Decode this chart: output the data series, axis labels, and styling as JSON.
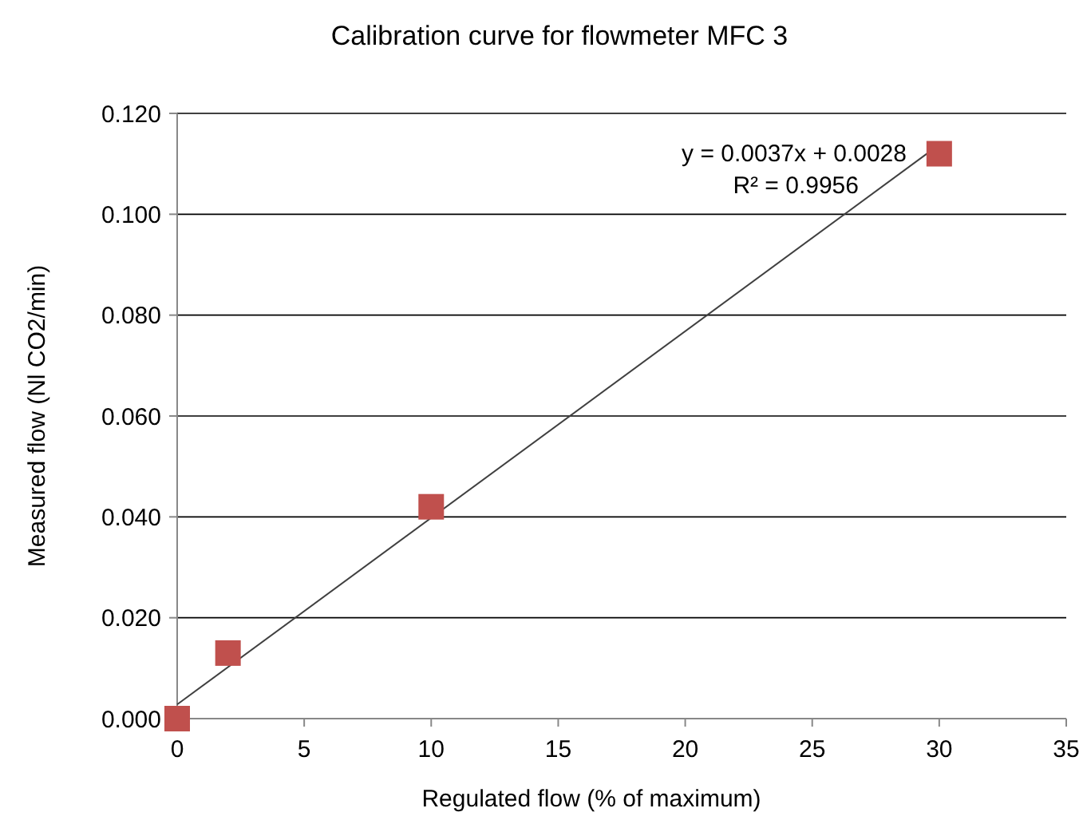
{
  "chart_data": {
    "type": "scatter",
    "title": "Calibration curve for flowmeter MFC 3",
    "xlabel": "Regulated flow (% of maximum)",
    "ylabel": "Measured flow (Nl CO2/min)",
    "x": [
      0,
      2,
      10,
      30
    ],
    "series": [
      {
        "type": "scatter",
        "color": "#c0504d",
        "values": [
          0,
          0.013,
          0.042,
          0.112
        ],
        "marker": "square"
      },
      {
        "type": "line",
        "color": "#404040",
        "x": [
          0,
          30
        ],
        "values": [
          0.0028,
          0.1138
        ],
        "marker": "none"
      }
    ],
    "annotations": [
      "y = 0.0037x + 0.0028",
      "R² = 0.9956"
    ],
    "xlim": [
      0,
      35
    ],
    "xticks": [
      0,
      5,
      10,
      15,
      20,
      25,
      30,
      35
    ],
    "ylim": [
      0,
      0.12
    ],
    "yticks": [
      {
        "value": 0,
        "label": "0.000"
      },
      {
        "value": 0.02,
        "label": "0.020"
      },
      {
        "value": 0.04,
        "label": "0.040"
      },
      {
        "value": 0.06,
        "label": "0.060"
      },
      {
        "value": 0.08,
        "label": "0.080"
      },
      {
        "value": 0.1,
        "label": "0.100"
      },
      {
        "value": 0.12,
        "label": "0.120"
      }
    ],
    "grid": "y"
  }
}
